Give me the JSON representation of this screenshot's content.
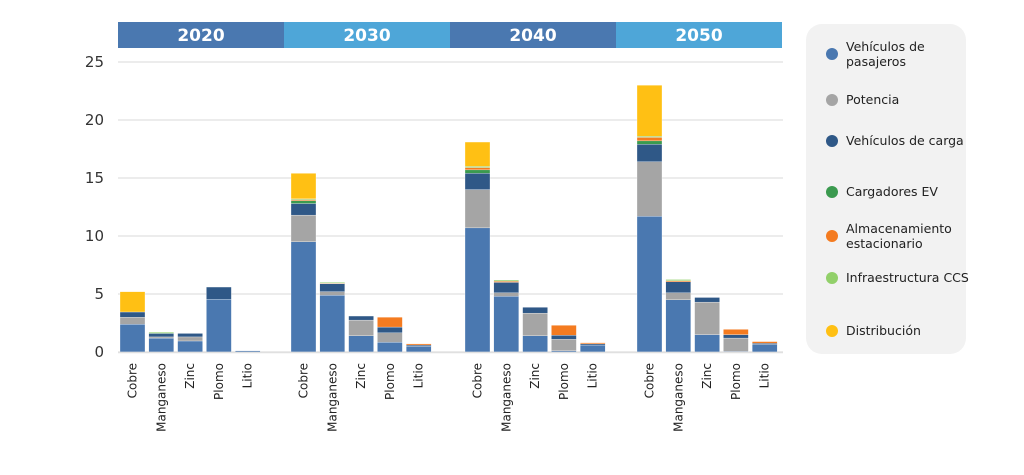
{
  "chart_data": {
    "type": "bar",
    "stacked": true,
    "title": "",
    "xlabel": "",
    "ylabel": "",
    "ylim": [
      0,
      25
    ],
    "yticks": [
      0,
      5,
      10,
      15,
      20,
      25
    ],
    "grid": true,
    "legend_position": "right",
    "groups": [
      "2020",
      "2030",
      "2040",
      "2050"
    ],
    "categories": [
      "Cobre",
      "Manganeso",
      "Zinc",
      "Plomo",
      "Litio"
    ],
    "series": [
      {
        "name": "Vehículos de pasajeros",
        "color": "#4a78b0",
        "values": {
          "2020": [
            2.4,
            1.2,
            0.95,
            4.55,
            0.1
          ],
          "2030": [
            9.5,
            4.9,
            1.4,
            0.85,
            0.5
          ],
          "2040": [
            10.7,
            4.8,
            1.4,
            0.1,
            0.6
          ],
          "2050": [
            11.7,
            4.5,
            1.5,
            0.05,
            0.65
          ]
        }
      },
      {
        "name": "Potencia",
        "color": "#a5a5a5",
        "values": {
          "2020": [
            0.6,
            0.1,
            0.35,
            0,
            0
          ],
          "2030": [
            2.3,
            0.3,
            1.35,
            0.8,
            0
          ],
          "2040": [
            3.3,
            0.3,
            1.95,
            1.0,
            0
          ],
          "2050": [
            4.7,
            0.6,
            2.8,
            1.15,
            0
          ]
        }
      },
      {
        "name": "Vehículos de carga",
        "color": "#2f5887",
        "values": {
          "2020": [
            0.45,
            0.3,
            0.3,
            1.05,
            0
          ],
          "2030": [
            1.0,
            0.7,
            0.35,
            0.5,
            0.1
          ],
          "2040": [
            1.4,
            0.9,
            0.5,
            0.35,
            0.1
          ],
          "2050": [
            1.5,
            0.95,
            0.4,
            0.3,
            0.1
          ]
        }
      },
      {
        "name": "Cargadores EV",
        "color": "#3b9a4f",
        "values": {
          "2020": [
            0,
            0,
            0,
            0,
            0
          ],
          "2030": [
            0.25,
            0,
            0,
            0,
            0
          ],
          "2040": [
            0.3,
            0,
            0,
            0,
            0
          ],
          "2050": [
            0.3,
            0,
            0,
            0,
            0
          ]
        }
      },
      {
        "name": "Almacenamiento estacionario",
        "color": "#f47b20",
        "values": {
          "2020": [
            0,
            0,
            0,
            0,
            0
          ],
          "2030": [
            0.1,
            0.05,
            0,
            0.85,
            0.1
          ],
          "2040": [
            0.2,
            0.1,
            0,
            0.85,
            0.1
          ],
          "2050": [
            0.3,
            0.1,
            0,
            0.45,
            0.15
          ]
        }
      },
      {
        "name": "Infraestructura CCS",
        "color": "#92d06a",
        "values": {
          "2020": [
            0,
            0.1,
            0,
            0,
            0
          ],
          "2030": [
            0.05,
            0.05,
            0,
            0,
            0
          ],
          "2040": [
            0.1,
            0.1,
            0,
            0,
            0
          ],
          "2050": [
            0.1,
            0.1,
            0,
            0,
            0
          ]
        }
      },
      {
        "name": "Distribución",
        "color": "#ffc014",
        "values": {
          "2020": [
            1.75,
            0,
            0,
            0,
            0
          ],
          "2030": [
            2.2,
            0,
            0,
            0,
            0
          ],
          "2040": [
            2.1,
            0,
            0,
            0,
            0
          ],
          "2050": [
            4.4,
            0,
            0,
            0,
            0
          ]
        }
      }
    ],
    "group_header_colors": [
      "#4a78b0",
      "#4ea6d8",
      "#4a78b0",
      "#4ea6d8"
    ]
  },
  "legend": {
    "items": [
      {
        "label": "Vehículos de pasajeros",
        "color": "#4a78b0"
      },
      {
        "label": "Potencia",
        "color": "#a5a5a5"
      },
      {
        "label": "Vehículos de carga",
        "color": "#2f5887"
      },
      {
        "label": "Cargadores EV",
        "color": "#3b9a4f"
      },
      {
        "label": "Almacenamiento estacionario",
        "color": "#f47b20"
      },
      {
        "label": "Infraestructura CCS",
        "color": "#92d06a"
      },
      {
        "label": "Distribución",
        "color": "#ffc014"
      }
    ]
  }
}
